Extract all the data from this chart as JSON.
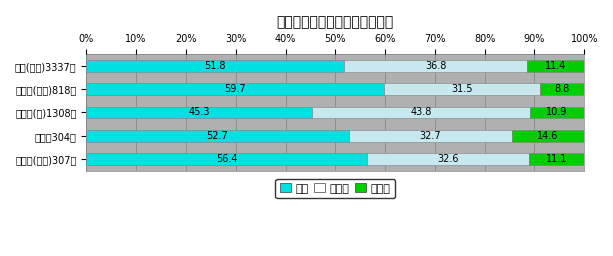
{
  "title": "雇入れ時の安全衛生教育の実施",
  "categories": [
    "全体(平均)3337件",
    "高齢者(施設)818件",
    "障害者(児)1308件",
    "保育所304件",
    "高齢者(訪問)307件"
  ],
  "values": [
    [
      51.8,
      36.8,
      11.4
    ],
    [
      59.7,
      31.5,
      8.8
    ],
    [
      45.3,
      43.8,
      10.9
    ],
    [
      52.7,
      32.7,
      14.6
    ],
    [
      56.4,
      32.6,
      11.1
    ]
  ],
  "colors": [
    "#00e0e0",
    "#c8e8f0",
    "#00cc00"
  ],
  "legend_labels": [
    "実施",
    "未実施",
    "無回答"
  ],
  "bg_color": "#b0b0b0",
  "xlim": [
    0,
    100
  ],
  "xticks": [
    0,
    10,
    20,
    30,
    40,
    50,
    60,
    70,
    80,
    90,
    100
  ],
  "xtick_labels": [
    "0%",
    "10%",
    "20%",
    "30%",
    "40%",
    "50%",
    "60%",
    "70%",
    "80%",
    "90%",
    "100%"
  ],
  "bar_height": 0.5,
  "bar_edge_color": "#808080",
  "title_fontsize": 10,
  "tick_fontsize": 7,
  "label_fontsize": 7,
  "value_fontsize": 7
}
